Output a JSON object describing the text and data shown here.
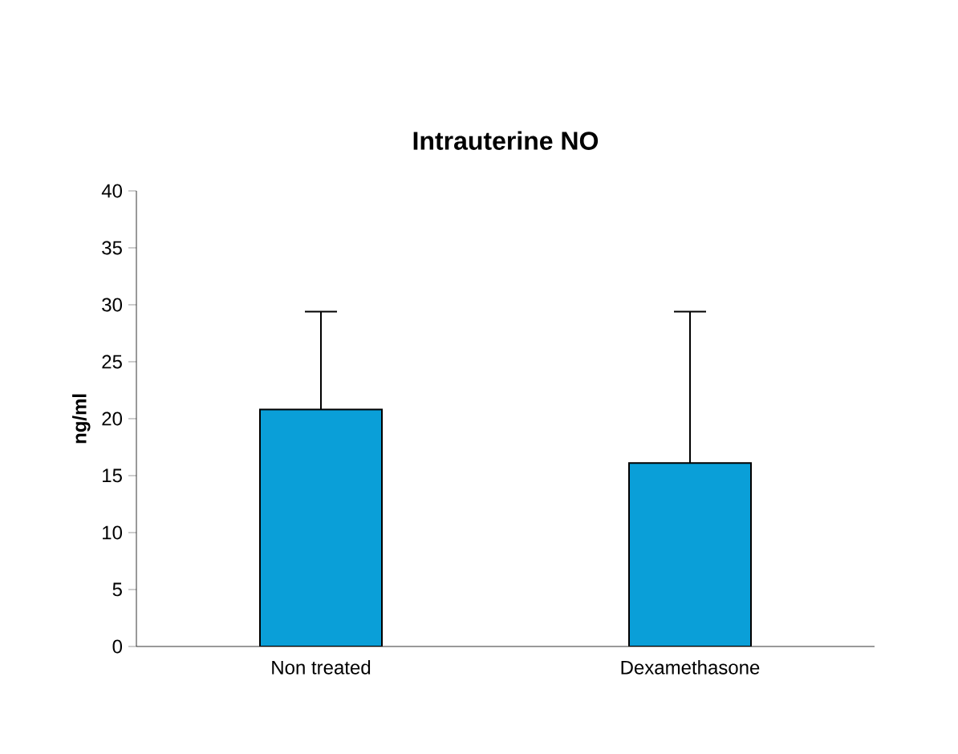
{
  "chart_data": {
    "type": "bar",
    "title": "**Intrauterine NO**",
    "ylabel": "**ng/ml**",
    "categories": [
      "Non treated",
      "Dexamethasone"
    ],
    "values": [
      20.8,
      16.1
    ],
    "errors": [
      [
        20.8,
        29.4
      ],
      [
        16.1,
        29.4
      ]
    ],
    "color": "#0a9fd8",
    "ylim": [
      0,
      40
    ],
    "yticks": [
      0,
      5,
      10,
      15,
      20,
      25,
      30,
      35,
      40
    ]
  }
}
